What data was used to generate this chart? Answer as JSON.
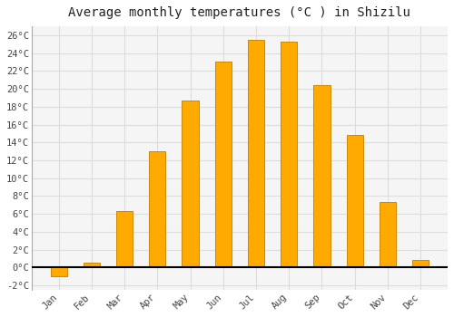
{
  "title": "Average monthly temperatures (°C ) in Shizilu",
  "months": [
    "Jan",
    "Feb",
    "Mar",
    "Apr",
    "May",
    "Jun",
    "Jul",
    "Aug",
    "Sep",
    "Oct",
    "Nov",
    "Dec"
  ],
  "values": [
    -1.0,
    0.5,
    6.3,
    13.0,
    18.7,
    23.0,
    25.5,
    25.3,
    20.4,
    14.8,
    7.3,
    0.8
  ],
  "bar_color": "#FFAA00",
  "bar_edge_color": "#CC8800",
  "background_color": "#ffffff",
  "plot_bg_color": "#f5f5f5",
  "grid_color": "#dddddd",
  "ylim_min": -2.5,
  "ylim_max": 27.0,
  "yticks": [
    -2,
    0,
    2,
    4,
    6,
    8,
    10,
    12,
    14,
    16,
    18,
    20,
    22,
    24,
    26
  ],
  "ytick_labels": [
    "-2°C",
    "0°C",
    "2°C",
    "4°C",
    "6°C",
    "8°C",
    "10°C",
    "12°C",
    "14°C",
    "16°C",
    "18°C",
    "20°C",
    "22°C",
    "24°C",
    "26°C"
  ],
  "title_fontsize": 10,
  "tick_fontsize": 7.5,
  "bar_width": 0.5,
  "figsize": [
    5.0,
    3.5
  ],
  "dpi": 100
}
